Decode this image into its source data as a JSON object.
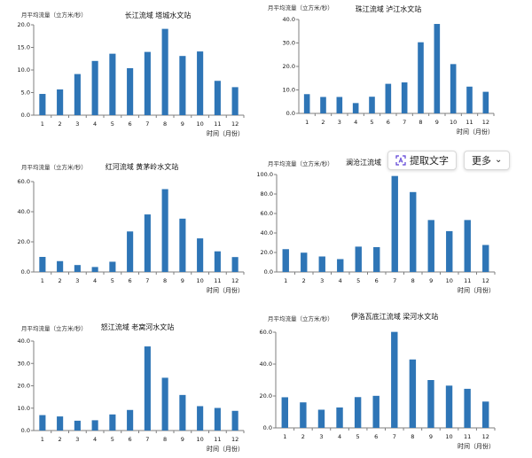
{
  "toolbar": {
    "extract_text_label": "提取文字",
    "more_label": "更多",
    "more_chevron": "⌄",
    "extract_icon": "text-extract-icon"
  },
  "colors": {
    "bar": "#2e75b6",
    "axis": "#7f7f7f"
  },
  "chart_data": [
    {
      "type": "bar",
      "ylabel": "月平均流量（立方米/秒）",
      "title": "长江流域  塔城水文站",
      "xlabel": "时间（月份）",
      "categories": [
        "1",
        "2",
        "3",
        "4",
        "5",
        "6",
        "7",
        "8",
        "9",
        "10",
        "11",
        "12"
      ],
      "values": [
        4.7,
        5.7,
        9.1,
        12.0,
        13.6,
        10.4,
        14.0,
        19.1,
        13.1,
        14.1,
        7.6,
        6.2
      ],
      "ylim": [
        0,
        20
      ],
      "yticks": [
        "0.0",
        "5.0",
        "10.0",
        "15.0",
        "20.0"
      ],
      "grid": false
    },
    {
      "type": "bar",
      "ylabel": "月平均流量（立方米/秒）",
      "title": "珠江流域  泸江水文站",
      "xlabel": "时间（月份）",
      "categories": [
        "1",
        "2",
        "3",
        "4",
        "5",
        "6",
        "7",
        "8",
        "9",
        "10",
        "11",
        "12"
      ],
      "values": [
        8.2,
        7.0,
        7.0,
        4.4,
        7.1,
        12.6,
        13.2,
        30.3,
        38.1,
        21.0,
        11.4,
        9.2
      ],
      "ylim": [
        0,
        40
      ],
      "yticks": [
        "0.0",
        "10.0",
        "20.0",
        "30.0",
        "40.0"
      ],
      "grid": false
    },
    {
      "type": "bar",
      "ylabel": "月平均流量（立方米/秒）",
      "title": "红河流域  黄茅岭水文站",
      "xlabel": "时间（月份）",
      "categories": [
        "1",
        "2",
        "3",
        "4",
        "5",
        "6",
        "7",
        "8",
        "9",
        "10",
        "11",
        "12"
      ],
      "values": [
        10.0,
        7.2,
        4.6,
        3.3,
        6.8,
        26.9,
        38.2,
        55.0,
        35.4,
        22.3,
        13.7,
        9.9
      ],
      "ylim": [
        0,
        60
      ],
      "yticks": [
        "0.0",
        "20.0",
        "40.0",
        "60.0"
      ],
      "grid": false
    },
    {
      "type": "bar",
      "ylabel": "月平均流量（立方米/秒）",
      "title": "澜沧江流域",
      "xlabel": "时间（月份）",
      "categories": [
        "1",
        "2",
        "3",
        "4",
        "5",
        "6",
        "7",
        "8",
        "9",
        "10",
        "11",
        "12"
      ],
      "values": [
        23.4,
        19.8,
        15.9,
        13.2,
        26.0,
        25.5,
        98.5,
        82.0,
        53.3,
        41.9,
        53.3,
        27.7
      ],
      "ylim": [
        0,
        100
      ],
      "yticks": [
        "0.0",
        "20.0",
        "40.0",
        "60.0",
        "80.0",
        "100.0"
      ],
      "grid": false
    },
    {
      "type": "bar",
      "ylabel": "月平均流量（立方米/秒）",
      "title": "怒江流域  老窝河水文站",
      "xlabel": "时间（月份）",
      "categories": [
        "1",
        "2",
        "3",
        "4",
        "5",
        "6",
        "7",
        "8",
        "9",
        "10",
        "11",
        "12"
      ],
      "values": [
        6.9,
        6.3,
        4.4,
        4.6,
        7.2,
        9.2,
        37.6,
        23.6,
        15.9,
        10.9,
        10.1,
        8.8
      ],
      "ylim": [
        0,
        40
      ],
      "yticks": [
        "0.0",
        "10.0",
        "20.0",
        "30.0",
        "40.0"
      ],
      "grid": false
    },
    {
      "type": "bar",
      "ylabel": "月平均流量（立方米/秒）",
      "title": "伊洛瓦底江流域  梁河水文站",
      "xlabel": "时间（月份）",
      "categories": [
        "1",
        "2",
        "3",
        "4",
        "5",
        "6",
        "7",
        "8",
        "9",
        "10",
        "11",
        "12"
      ],
      "values": [
        19.2,
        16.0,
        11.4,
        12.8,
        19.3,
        20.1,
        60.2,
        42.9,
        30.0,
        26.5,
        24.5,
        16.5
      ],
      "ylim": [
        0,
        60
      ],
      "yticks": [
        "0.0",
        "20.0",
        "40.0",
        "60.0"
      ],
      "grid": false
    }
  ]
}
